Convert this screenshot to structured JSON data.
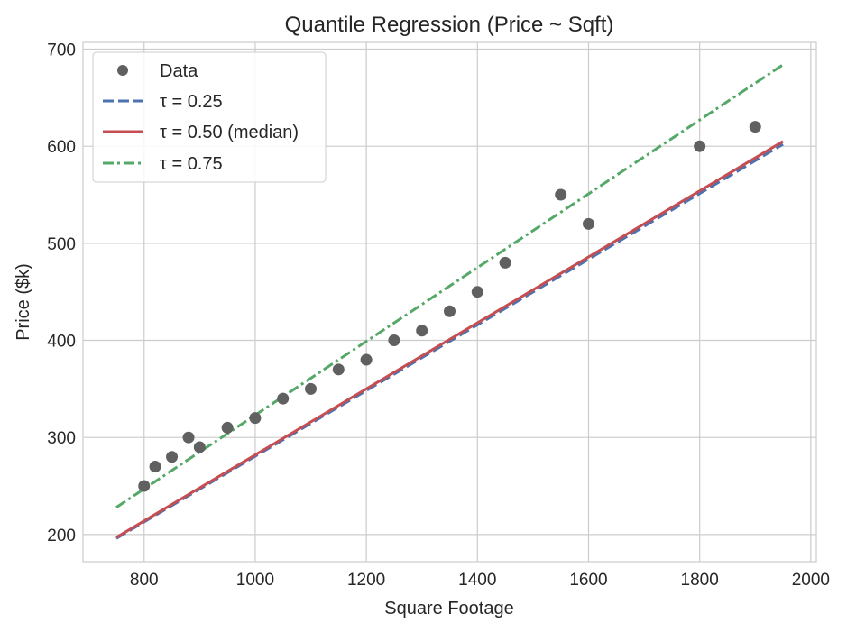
{
  "chart_data": {
    "type": "scatter",
    "title": "Quantile Regression (Price ~ Sqft)",
    "xlabel": "Square Footage",
    "ylabel": "Price ($k)",
    "xlim": [
      690,
      2010
    ],
    "ylim": [
      172,
      707
    ],
    "xticks": [
      800,
      1000,
      1200,
      1400,
      1600,
      1800,
      2000
    ],
    "yticks": [
      200,
      300,
      400,
      500,
      600,
      700
    ],
    "grid": true,
    "legend_placement": "top-left",
    "points": {
      "name": "Data",
      "color": "#606060",
      "x": [
        800,
        820,
        850,
        880,
        900,
        950,
        1000,
        1050,
        1100,
        1150,
        1200,
        1250,
        1300,
        1350,
        1400,
        1450,
        1550,
        1600,
        1800,
        1900
      ],
      "y": [
        250,
        270,
        280,
        300,
        290,
        310,
        320,
        340,
        350,
        370,
        380,
        400,
        410,
        430,
        450,
        480,
        550,
        520,
        600,
        620
      ]
    },
    "series": [
      {
        "name": "τ = 0.25",
        "color": "#4c72b0",
        "dash": "dashed",
        "x": [
          750,
          1950
        ],
        "y": [
          196,
          602
        ]
      },
      {
        "name": "τ = 0.50 (median)",
        "color": "#c44e52",
        "dash": "solid",
        "x": [
          750,
          1950
        ],
        "y": [
          197,
          605
        ]
      },
      {
        "name": "τ = 0.75",
        "color": "#55a868",
        "dash": "dashdot",
        "x": [
          750,
          1950
        ],
        "y": [
          228,
          684
        ]
      }
    ]
  }
}
